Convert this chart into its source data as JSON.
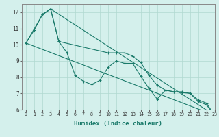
{
  "xlabel": "Humidex (Indice chaleur)",
  "background_color": "#d4f0ec",
  "grid_color": "#b0d8d0",
  "line_color": "#1a7a6a",
  "xlim": [
    -0.5,
    23
  ],
  "ylim": [
    6,
    12.5
  ],
  "yticks": [
    6,
    7,
    8,
    9,
    10,
    11,
    12
  ],
  "xticks": [
    0,
    1,
    2,
    3,
    4,
    5,
    6,
    7,
    8,
    9,
    10,
    11,
    12,
    13,
    14,
    15,
    16,
    17,
    18,
    19,
    20,
    21,
    22,
    23
  ],
  "series": [
    {
      "x": [
        0,
        1,
        2,
        3,
        4,
        5,
        6,
        7,
        8,
        9,
        10,
        11,
        12,
        13,
        14,
        15,
        16,
        17,
        18,
        19,
        20,
        21,
        22,
        23
      ],
      "y": [
        10.1,
        10.9,
        11.85,
        12.2,
        10.2,
        9.5,
        8.1,
        7.75,
        7.55,
        7.8,
        8.6,
        9.0,
        8.85,
        8.85,
        8.05,
        7.3,
        6.65,
        7.2,
        7.1,
        7.1,
        7.0,
        6.5,
        6.3,
        5.65
      ]
    },
    {
      "x": [
        0,
        2,
        3,
        4,
        10,
        11,
        12,
        13,
        14,
        15,
        16,
        17,
        18,
        19,
        20,
        21,
        22,
        23
      ],
      "y": [
        10.1,
        11.85,
        12.2,
        10.2,
        9.5,
        9.5,
        9.5,
        9.3,
        8.9,
        8.1,
        7.5,
        7.2,
        7.1,
        7.05,
        7.0,
        6.6,
        6.4,
        5.65
      ]
    },
    {
      "x": [
        0,
        23
      ],
      "y": [
        10.1,
        5.65
      ]
    },
    {
      "x": [
        2,
        3,
        23
      ],
      "y": [
        11.85,
        12.2,
        5.65
      ]
    }
  ]
}
